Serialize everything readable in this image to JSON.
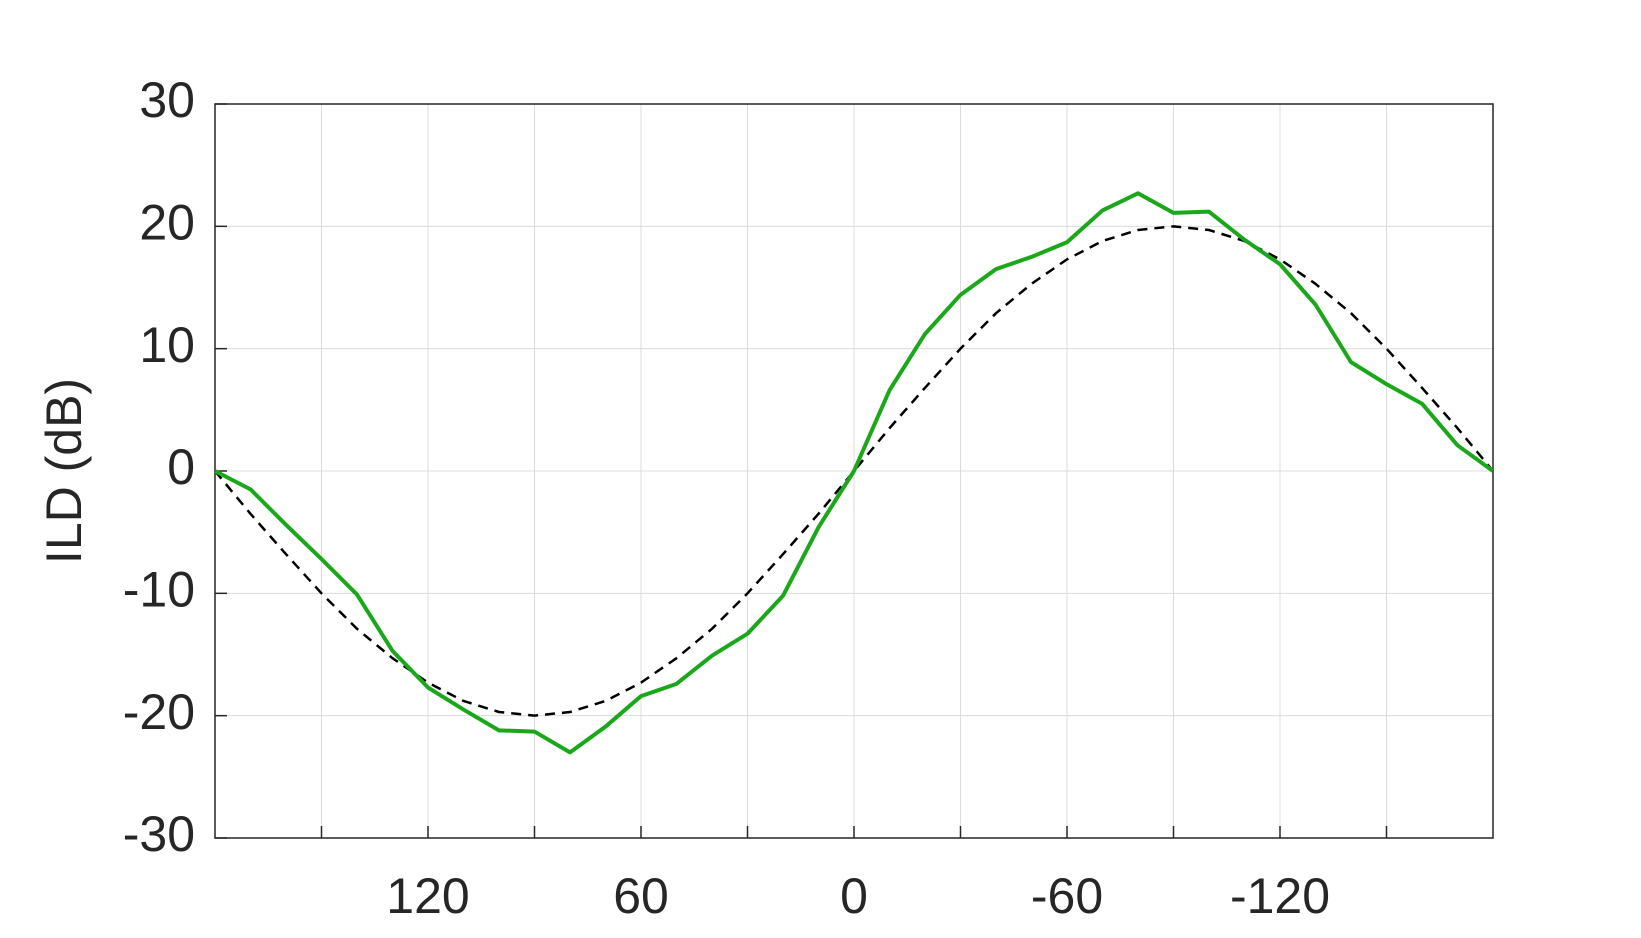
{
  "chart_data": {
    "type": "line",
    "y_label": "ILD (dB)",
    "x": [
      180,
      170,
      160,
      150,
      140,
      130,
      120,
      110,
      100,
      90,
      80,
      70,
      60,
      50,
      40,
      30,
      20,
      10,
      0,
      -10,
      -20,
      -30,
      -40,
      -50,
      -60,
      -70,
      -80,
      -90,
      -100,
      -110,
      -120,
      -130,
      -140,
      -150,
      -160,
      -170,
      -180
    ],
    "series": [
      {
        "color": "#1aa81a",
        "linestyle": "solid",
        "values": [
          0,
          -1.5,
          -4.4,
          -7.2,
          -10.1,
          -14.7,
          -17.7,
          -19.5,
          -21.2,
          -21.3,
          -23.0,
          -20.9,
          -18.4,
          -17.4,
          -15.1,
          -13.3,
          -10.2,
          -4.6,
          0,
          6.6,
          11.2,
          14.4,
          16.5,
          17.5,
          18.7,
          21.3,
          22.7,
          21.1,
          21.2,
          18.9,
          16.9,
          13.6,
          8.9,
          7.1,
          5.5,
          2.1,
          0
        ]
      },
      {
        "color": "#000000",
        "linestyle": "dashed",
        "values": [
          0,
          -3.5,
          -6.8,
          -10,
          -12.9,
          -15.3,
          -17.3,
          -18.8,
          -19.7,
          -20,
          -19.7,
          -18.8,
          -17.3,
          -15.3,
          -12.9,
          -10,
          -6.8,
          -3.5,
          0,
          3.5,
          6.8,
          10,
          12.9,
          15.3,
          17.3,
          18.8,
          19.7,
          20,
          19.7,
          18.8,
          17.3,
          15.3,
          12.9,
          10,
          6.8,
          3.5,
          0
        ]
      }
    ],
    "xlim": [
      180,
      -180
    ],
    "xticks": [
      120,
      60,
      0,
      -60,
      -120
    ],
    "xminorticks": [
      150,
      90,
      30,
      -30,
      -90,
      -150
    ],
    "ylim": [
      -30,
      30
    ],
    "yticks": [
      -30,
      -20,
      -10,
      0,
      10,
      20,
      30
    ],
    "grid": true
  }
}
